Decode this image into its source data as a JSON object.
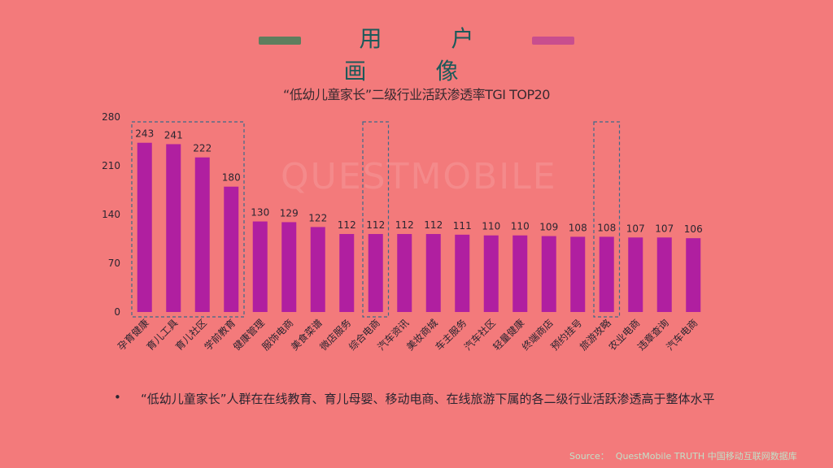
{
  "header": {
    "title": "用 户 画 像",
    "left_bar_color": "#5e7e5e",
    "right_bar_color": "#c84e8e"
  },
  "background_color": "#f37a7b",
  "watermark": "QUESTMOBILE",
  "chart_data": {
    "type": "bar",
    "title": "“低幼儿童家长”二级行业活跃渗透率TGI TOP20",
    "xlabel": "",
    "ylabel": "",
    "ylim": [
      0,
      280
    ],
    "yticks": [
      0,
      70,
      140,
      210,
      280
    ],
    "categories": [
      "孕育健康",
      "育儿工具",
      "育儿社区",
      "学前教育",
      "健康管理",
      "服饰电商",
      "美食菜谱",
      "微店服务",
      "综合电商",
      "汽车资讯",
      "美妆商城",
      "车主服务",
      "汽车社区",
      "轻量健康",
      "终端商店",
      "预约挂号",
      "旅游攻略",
      "农业电商",
      "违章查询",
      "汽车电商"
    ],
    "values": [
      243,
      241,
      222,
      180,
      130,
      129,
      122,
      112,
      112,
      112,
      112,
      111,
      110,
      110,
      109,
      108,
      108,
      107,
      107,
      106
    ],
    "bar_color": "#b01fa0",
    "highlight_groups": [
      {
        "from": "孕育健康",
        "to": "学前教育"
      },
      {
        "from": "综合电商",
        "to": "综合电商"
      },
      {
        "from": "旅游攻略",
        "to": "旅游攻略"
      }
    ],
    "grid": false,
    "legend": "none"
  },
  "note": {
    "bullet": "•",
    "text": "“低幼儿童家长”人群在在线教育、育儿母婴、移动电商、在线旅游下属的各二级行业活跃渗透高于整体水平"
  },
  "source": {
    "label": "Source：",
    "text": "QuestMobile TRUTH 中国移动互联网数据库"
  }
}
